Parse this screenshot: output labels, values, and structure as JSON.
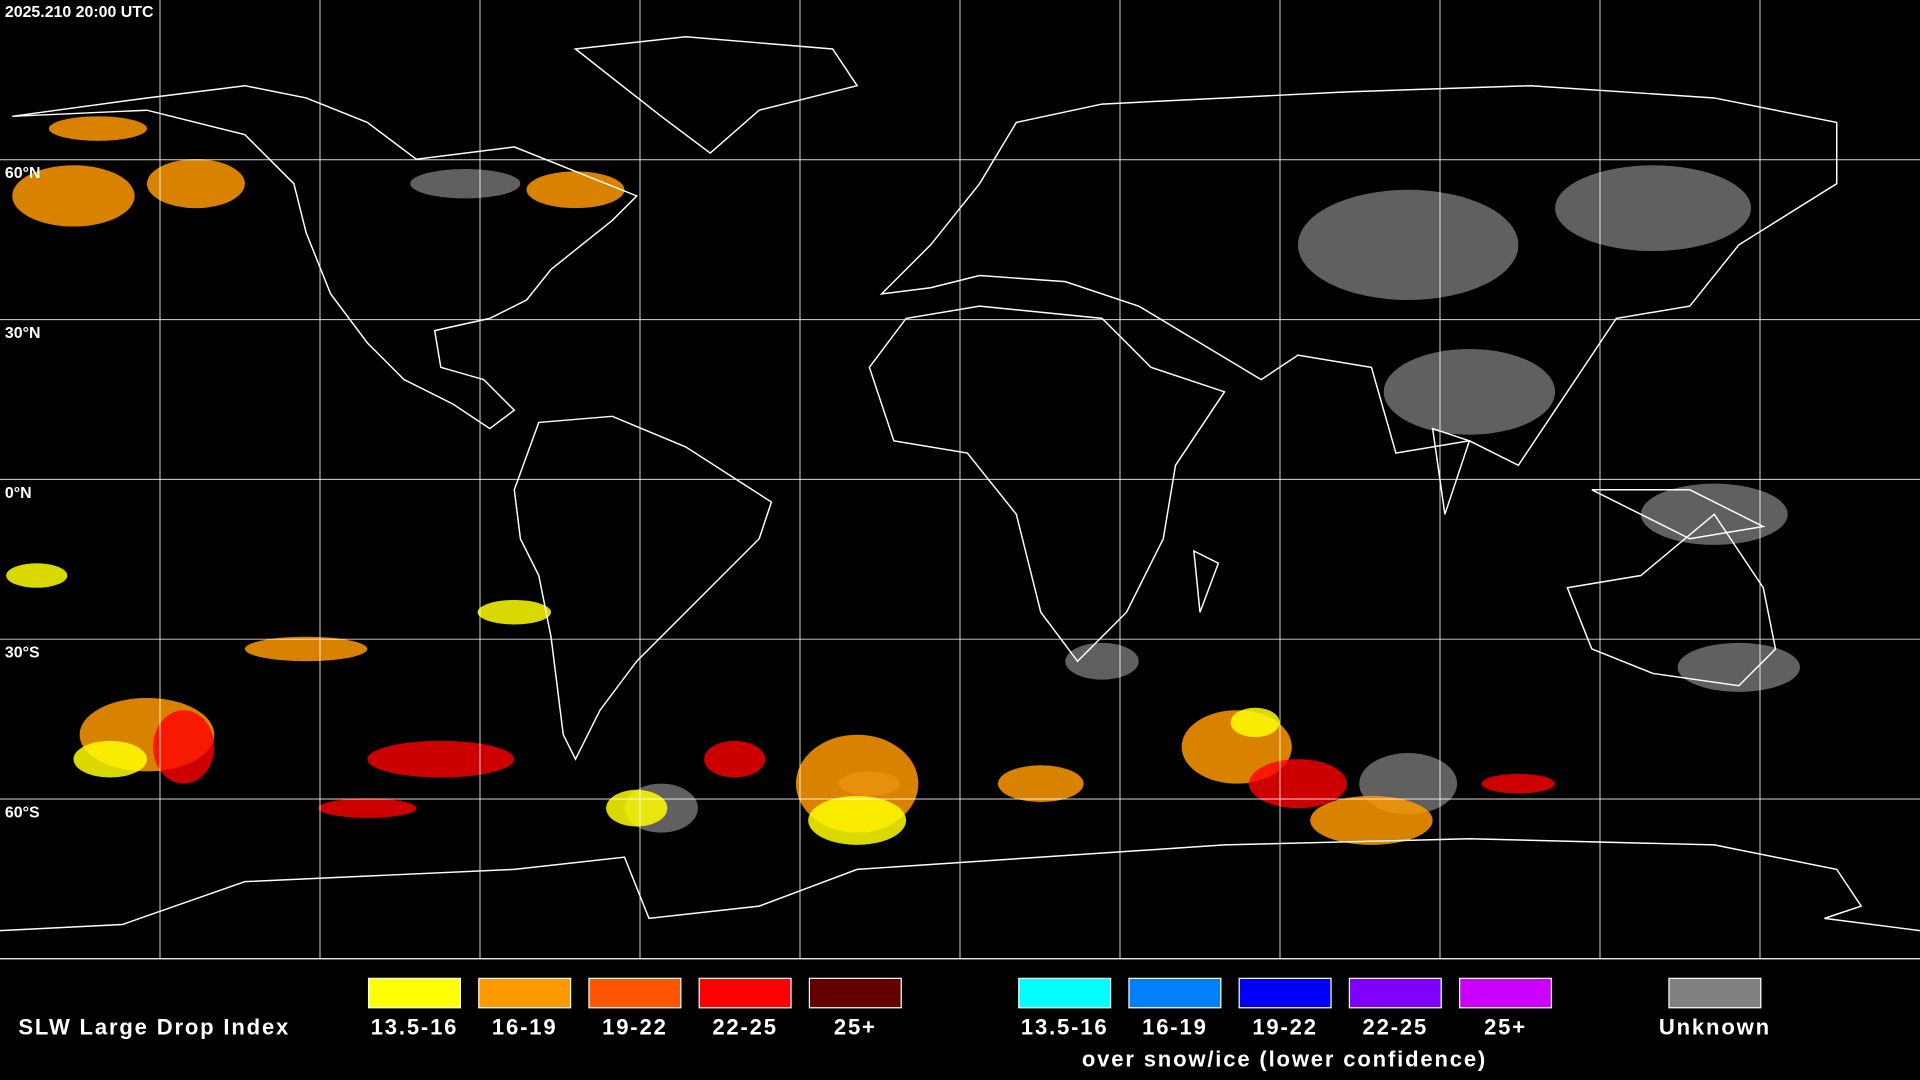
{
  "timestamp": "2025.210 20:00 UTC",
  "latitude_labels": [
    "60°N",
    "30°N",
    "0°N",
    "30°S",
    "60°S"
  ],
  "legend": {
    "title": "SLW Large Drop Index",
    "items": [
      {
        "label": "13.5-16",
        "color": "#ffff00"
      },
      {
        "label": "16-19",
        "color": "#ff9900"
      },
      {
        "label": "19-22",
        "color": "#ff5500"
      },
      {
        "label": "22-25",
        "color": "#ff0000"
      },
      {
        "label": "25+",
        "color": "#660000"
      }
    ],
    "snow_ice_items": [
      {
        "label": "13.5-16",
        "color": "#00ffff"
      },
      {
        "label": "16-19",
        "color": "#0080ff"
      },
      {
        "label": "19-22",
        "color": "#0000ff"
      },
      {
        "label": "22-25",
        "color": "#7f00ff"
      },
      {
        "label": "25+",
        "color": "#cc00ff"
      }
    ],
    "snow_ice_caption": "over snow/ice (lower confidence)",
    "unknown": {
      "label": "Unknown",
      "color": "#808080"
    }
  }
}
